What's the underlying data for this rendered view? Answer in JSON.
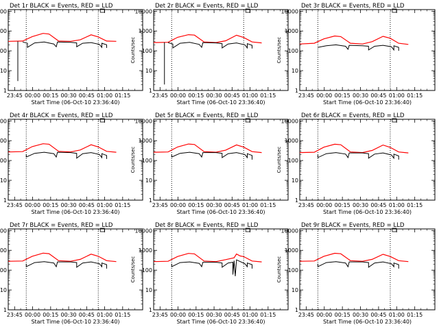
{
  "chart_data": {
    "type": "line",
    "xaxis": {
      "label": "Start Time (06-Oct-10 23:36:40)",
      "ticks": [
        "23:45",
        "00:00",
        "00:15",
        "00:30",
        "00:45",
        "01:00",
        "01:15"
      ],
      "range_minutes": [
        -12,
        100
      ]
    },
    "yaxis": {
      "label": "Counts/sec",
      "scale": "log",
      "range": [
        1,
        12000
      ],
      "ticks": [
        "1",
        "10",
        "100",
        "1000",
        "10000"
      ]
    },
    "dotted_markers_minutes": [
      3,
      63
    ],
    "series_colors": {
      "events": "#000000",
      "lld": "#ff0000"
    },
    "panels": [
      {
        "title": "Det 1r BLACK = Events, RED = LLD",
        "lld": [
          [
            -12,
            300
          ],
          [
            0,
            310
          ],
          [
            8,
            520
          ],
          [
            17,
            760
          ],
          [
            22,
            700
          ],
          [
            30,
            310
          ],
          [
            40,
            300
          ],
          [
            48,
            360
          ],
          [
            57,
            640
          ],
          [
            63,
            500
          ],
          [
            70,
            310
          ],
          [
            78,
            300
          ]
        ],
        "events": [
          [
            0,
            280
          ],
          [
            4,
            240
          ],
          [
            4,
            150
          ],
          [
            10,
            250
          ],
          [
            18,
            280
          ],
          [
            26,
            220
          ],
          [
            28,
            160
          ],
          [
            29,
            280
          ],
          [
            40,
            270
          ],
          [
            45,
            250
          ],
          [
            45,
            160
          ],
          [
            50,
            240
          ],
          [
            57,
            260
          ],
          [
            64,
            210
          ],
          [
            66,
            150
          ],
          [
            66,
            240
          ],
          [
            70,
            200
          ],
          [
            70,
            140
          ]
        ],
        "spike": {
          "x": -4,
          "bottom": 3,
          "top": 300
        }
      },
      {
        "title": "Det 2r BLACK = Events, RED = LLD",
        "lld": [
          [
            -12,
            260
          ],
          [
            0,
            270
          ],
          [
            8,
            480
          ],
          [
            17,
            650
          ],
          [
            22,
            620
          ],
          [
            30,
            280
          ],
          [
            40,
            260
          ],
          [
            48,
            320
          ],
          [
            57,
            610
          ],
          [
            63,
            470
          ],
          [
            70,
            280
          ],
          [
            78,
            250
          ]
        ],
        "events": [
          [
            0,
            260
          ],
          [
            4,
            220
          ],
          [
            4,
            140
          ],
          [
            10,
            240
          ],
          [
            18,
            270
          ],
          [
            26,
            210
          ],
          [
            28,
            150
          ],
          [
            29,
            260
          ],
          [
            40,
            250
          ],
          [
            45,
            230
          ],
          [
            45,
            140
          ],
          [
            50,
            220
          ],
          [
            57,
            250
          ],
          [
            64,
            200
          ],
          [
            66,
            140
          ],
          [
            66,
            230
          ],
          [
            70,
            190
          ],
          [
            70,
            130
          ]
        ],
        "spike": {
          "x": -3,
          "bottom": 2,
          "top": 270
        }
      },
      {
        "title": "Det 3r BLACK = Events, RED = LLD",
        "lld": [
          [
            -12,
            220
          ],
          [
            0,
            240
          ],
          [
            8,
            400
          ],
          [
            17,
            560
          ],
          [
            22,
            520
          ],
          [
            30,
            240
          ],
          [
            40,
            220
          ],
          [
            48,
            290
          ],
          [
            57,
            540
          ],
          [
            63,
            430
          ],
          [
            70,
            240
          ],
          [
            78,
            210
          ]
        ],
        "events": [
          [
            3,
            150
          ],
          [
            10,
            180
          ],
          [
            18,
            200
          ],
          [
            26,
            170
          ],
          [
            28,
            120
          ],
          [
            29,
            190
          ],
          [
            40,
            180
          ],
          [
            45,
            170
          ],
          [
            45,
            110
          ],
          [
            50,
            170
          ],
          [
            57,
            190
          ],
          [
            64,
            160
          ],
          [
            66,
            110
          ],
          [
            66,
            180
          ],
          [
            70,
            150
          ],
          [
            70,
            100
          ]
        ],
        "spike": null
      },
      {
        "title": "Det 4r BLACK = Events, RED = LLD",
        "lld": [
          [
            -12,
            270
          ],
          [
            0,
            280
          ],
          [
            8,
            500
          ],
          [
            17,
            700
          ],
          [
            22,
            660
          ],
          [
            30,
            290
          ],
          [
            40,
            270
          ],
          [
            48,
            340
          ],
          [
            57,
            620
          ],
          [
            63,
            480
          ],
          [
            70,
            290
          ],
          [
            78,
            260
          ]
        ],
        "events": [
          [
            3,
            200
          ],
          [
            3,
            150
          ],
          [
            10,
            230
          ],
          [
            18,
            260
          ],
          [
            26,
            220
          ],
          [
            28,
            150
          ],
          [
            29,
            260
          ],
          [
            40,
            250
          ],
          [
            45,
            230
          ],
          [
            45,
            130
          ],
          [
            50,
            220
          ],
          [
            57,
            250
          ],
          [
            64,
            200
          ],
          [
            66,
            140
          ],
          [
            66,
            220
          ],
          [
            70,
            180
          ],
          [
            70,
            120
          ]
        ],
        "spike": null
      },
      {
        "title": "Det 5r BLACK = Events, RED = LLD",
        "lld": [
          [
            -12,
            260
          ],
          [
            0,
            270
          ],
          [
            8,
            480
          ],
          [
            17,
            680
          ],
          [
            22,
            640
          ],
          [
            30,
            280
          ],
          [
            40,
            260
          ],
          [
            48,
            330
          ],
          [
            57,
            610
          ],
          [
            63,
            470
          ],
          [
            70,
            280
          ],
          [
            78,
            250
          ]
        ],
        "events": [
          [
            3,
            200
          ],
          [
            3,
            150
          ],
          [
            10,
            230
          ],
          [
            18,
            260
          ],
          [
            26,
            220
          ],
          [
            28,
            150
          ],
          [
            29,
            250
          ],
          [
            40,
            250
          ],
          [
            45,
            230
          ],
          [
            45,
            140
          ],
          [
            50,
            220
          ],
          [
            57,
            250
          ],
          [
            64,
            200
          ],
          [
            66,
            140
          ],
          [
            66,
            220
          ],
          [
            70,
            180
          ],
          [
            70,
            110
          ]
        ],
        "spike": null
      },
      {
        "title": "Det 6r BLACK = Events, RED = LLD",
        "lld": [
          [
            -12,
            250
          ],
          [
            0,
            260
          ],
          [
            8,
            470
          ],
          [
            17,
            660
          ],
          [
            22,
            620
          ],
          [
            30,
            270
          ],
          [
            40,
            250
          ],
          [
            48,
            320
          ],
          [
            57,
            600
          ],
          [
            63,
            460
          ],
          [
            70,
            270
          ],
          [
            78,
            240
          ]
        ],
        "events": [
          [
            3,
            190
          ],
          [
            3,
            140
          ],
          [
            10,
            220
          ],
          [
            18,
            250
          ],
          [
            26,
            210
          ],
          [
            28,
            140
          ],
          [
            29,
            240
          ],
          [
            40,
            240
          ],
          [
            45,
            220
          ],
          [
            45,
            130
          ],
          [
            50,
            210
          ],
          [
            57,
            240
          ],
          [
            64,
            190
          ],
          [
            66,
            130
          ],
          [
            66,
            210
          ],
          [
            70,
            170
          ],
          [
            70,
            110
          ]
        ],
        "spike": null
      },
      {
        "title": "Det 7r BLACK = Events, RED = LLD",
        "lld": [
          [
            -12,
            280
          ],
          [
            0,
            290
          ],
          [
            8,
            500
          ],
          [
            17,
            720
          ],
          [
            22,
            680
          ],
          [
            30,
            300
          ],
          [
            40,
            280
          ],
          [
            48,
            350
          ],
          [
            57,
            640
          ],
          [
            63,
            500
          ],
          [
            70,
            300
          ],
          [
            78,
            270
          ]
        ],
        "events": [
          [
            3,
            210
          ],
          [
            3,
            150
          ],
          [
            10,
            240
          ],
          [
            18,
            270
          ],
          [
            26,
            230
          ],
          [
            28,
            150
          ],
          [
            29,
            260
          ],
          [
            40,
            260
          ],
          [
            45,
            240
          ],
          [
            45,
            140
          ],
          [
            50,
            230
          ],
          [
            57,
            260
          ],
          [
            64,
            210
          ],
          [
            66,
            150
          ],
          [
            66,
            230
          ],
          [
            70,
            190
          ],
          [
            70,
            120
          ]
        ],
        "spike": null
      },
      {
        "title": "Det 8r BLACK = Events, RED = LLD",
        "lld": [
          [
            -12,
            270
          ],
          [
            0,
            280
          ],
          [
            8,
            490
          ],
          [
            17,
            700
          ],
          [
            22,
            660
          ],
          [
            30,
            290
          ],
          [
            40,
            270
          ],
          [
            48,
            340
          ],
          [
            55,
            420
          ],
          [
            57,
            650
          ],
          [
            60,
            520
          ],
          [
            63,
            480
          ],
          [
            70,
            290
          ],
          [
            78,
            260
          ]
        ],
        "events": [
          [
            3,
            210
          ],
          [
            3,
            150
          ],
          [
            10,
            240
          ],
          [
            18,
            260
          ],
          [
            26,
            220
          ],
          [
            28,
            150
          ],
          [
            29,
            250
          ],
          [
            40,
            250
          ],
          [
            45,
            230
          ],
          [
            45,
            140
          ],
          [
            50,
            230
          ],
          [
            54,
            250
          ],
          [
            54,
            60
          ],
          [
            55,
            300
          ],
          [
            56,
            50
          ],
          [
            57,
            330
          ],
          [
            64,
            210
          ],
          [
            66,
            150
          ],
          [
            66,
            230
          ],
          [
            70,
            190
          ],
          [
            70,
            120
          ]
        ],
        "spike": null
      },
      {
        "title": "Det 9r BLACK = Events, RED = LLD",
        "lld": [
          [
            -12,
            280
          ],
          [
            0,
            290
          ],
          [
            8,
            500
          ],
          [
            17,
            710
          ],
          [
            22,
            670
          ],
          [
            30,
            300
          ],
          [
            40,
            280
          ],
          [
            48,
            350
          ],
          [
            57,
            630
          ],
          [
            63,
            490
          ],
          [
            70,
            300
          ],
          [
            78,
            270
          ]
        ],
        "events": [
          [
            3,
            210
          ],
          [
            3,
            150
          ],
          [
            10,
            240
          ],
          [
            18,
            270
          ],
          [
            26,
            230
          ],
          [
            28,
            150
          ],
          [
            29,
            260
          ],
          [
            40,
            260
          ],
          [
            45,
            240
          ],
          [
            45,
            140
          ],
          [
            50,
            230
          ],
          [
            57,
            260
          ],
          [
            64,
            210
          ],
          [
            66,
            150
          ],
          [
            66,
            230
          ],
          [
            70,
            190
          ],
          [
            70,
            120
          ]
        ],
        "spike": null
      }
    ]
  }
}
